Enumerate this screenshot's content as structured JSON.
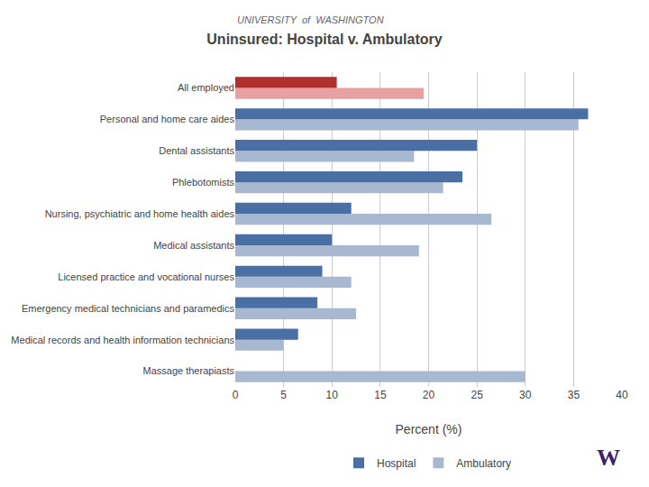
{
  "chart_data": {
    "type": "bar",
    "orientation": "horizontal",
    "title": "Uninsured: Hospital v. Ambulatory",
    "x_label": "Percent (%)",
    "categories": [
      "Massage therapiasts",
      "Medical records and health information technicians",
      "Emergency medical technicians and paramedics",
      "Licensed practice and vocational nurses",
      "Medical assistants",
      "Nursing, psychiatric and home health aides",
      "Phlebotomists",
      "Dental assistants",
      "Personal and home care aides",
      "All employed"
    ],
    "series": [
      {
        "name": "Hospital",
        "color": "#4a6fa5",
        "colors": [
          "#4a6fa5",
          "#4a6fa5",
          "#4a6fa5",
          "#4a6fa5",
          "#4a6fa5",
          "#4a6fa5",
          "#4a6fa5",
          "#4a6fa5",
          "#4a6fa5",
          "#b03030"
        ],
        "values": [
          0,
          6.5,
          8.5,
          9.0,
          10.0,
          12.0,
          23.5,
          25.0,
          36.5,
          10.5
        ]
      },
      {
        "name": "Ambulatory",
        "color": "#a8b8d0",
        "colors": [
          "#a8b8d0",
          "#a8b8d0",
          "#a8b8d0",
          "#a8b8d0",
          "#a8b8d0",
          "#a8b8d0",
          "#a8b8d0",
          "#a8b8d0",
          "#a8b8d0",
          "#e8a0a0"
        ],
        "values": [
          30.0,
          5.0,
          12.5,
          12.0,
          19.0,
          26.5,
          21.5,
          18.5,
          35.5,
          19.5
        ]
      }
    ],
    "xlim": [
      0,
      40
    ],
    "xticks": [
      0,
      5,
      10,
      15,
      20,
      25,
      30,
      35,
      40
    ],
    "grid": true,
    "legend": "bottom",
    "annotations": [
      {
        "text": "UNIVERSITY  of  WASHINGTON",
        "color": "#666666"
      },
      {
        "text": "W",
        "color": "#3d1f6e"
      }
    ]
  }
}
